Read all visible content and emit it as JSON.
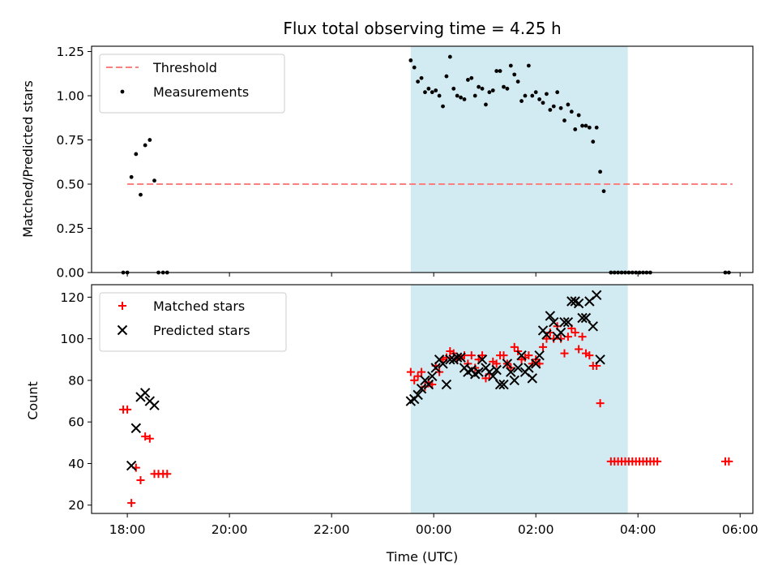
{
  "chart_data": [
    {
      "type": "scatter",
      "title": "Flux total observing time = 4.25 h",
      "ylabel": "Matched/Predicted stars",
      "xlim": [
        -6.7,
        6.25
      ],
      "ylim": [
        0,
        1.28
      ],
      "yticks": [
        0,
        0.25,
        0.5,
        0.75,
        1.0,
        1.25
      ],
      "ytick_labels": [
        "0.00",
        "0.25",
        "0.50",
        "0.75",
        "1.00",
        "1.25"
      ],
      "legend_position": "top-left",
      "shaded_span": {
        "x0": -0.45,
        "x1": 3.8,
        "color": "#add8e6"
      },
      "threshold": {
        "name": "Threshold",
        "y": 0.5,
        "x0": -6.0,
        "x1": 5.85,
        "color": "#ff7f7f",
        "style": "dashed"
      },
      "series": [
        {
          "name": "Measurements",
          "marker": "dot",
          "color": "#000000",
          "points": [
            [
              -6.08,
              0.0
            ],
            [
              -6.0,
              0.0
            ],
            [
              -5.92,
              0.54
            ],
            [
              -5.83,
              0.67
            ],
            [
              -5.74,
              0.44
            ],
            [
              -5.65,
              0.72
            ],
            [
              -5.56,
              0.75
            ],
            [
              -5.47,
              0.52
            ],
            [
              -5.39,
              0.0
            ],
            [
              -5.3,
              0.0
            ],
            [
              -5.22,
              0.0
            ],
            [
              -0.45,
              1.2
            ],
            [
              -0.38,
              1.16
            ],
            [
              -0.31,
              1.08
            ],
            [
              -0.24,
              1.1
            ],
            [
              -0.17,
              1.02
            ],
            [
              -0.1,
              1.04
            ],
            [
              -0.03,
              1.02
            ],
            [
              0.04,
              1.03
            ],
            [
              0.11,
              1.0
            ],
            [
              0.18,
              0.94
            ],
            [
              0.25,
              1.11
            ],
            [
              0.32,
              1.22
            ],
            [
              0.39,
              1.04
            ],
            [
              0.46,
              1.0
            ],
            [
              0.53,
              0.99
            ],
            [
              0.6,
              0.98
            ],
            [
              0.67,
              1.09
            ],
            [
              0.74,
              1.1
            ],
            [
              0.81,
              1.0
            ],
            [
              0.88,
              1.05
            ],
            [
              0.95,
              1.04
            ],
            [
              1.02,
              0.95
            ],
            [
              1.09,
              1.02
            ],
            [
              1.16,
              1.03
            ],
            [
              1.23,
              1.14
            ],
            [
              1.3,
              1.14
            ],
            [
              1.37,
              1.05
            ],
            [
              1.44,
              1.04
            ],
            [
              1.51,
              1.17
            ],
            [
              1.58,
              1.12
            ],
            [
              1.65,
              1.08
            ],
            [
              1.72,
              0.97
            ],
            [
              1.79,
              1.0
            ],
            [
              1.86,
              1.17
            ],
            [
              1.93,
              1.0
            ],
            [
              2.0,
              1.02
            ],
            [
              2.07,
              0.98
            ],
            [
              2.14,
              0.96
            ],
            [
              2.21,
              1.01
            ],
            [
              2.28,
              0.92
            ],
            [
              2.35,
              0.94
            ],
            [
              2.42,
              1.02
            ],
            [
              2.49,
              0.93
            ],
            [
              2.56,
              0.86
            ],
            [
              2.63,
              0.95
            ],
            [
              2.7,
              0.91
            ],
            [
              2.77,
              0.81
            ],
            [
              2.84,
              0.89
            ],
            [
              2.91,
              0.83
            ],
            [
              2.98,
              0.83
            ],
            [
              3.05,
              0.82
            ],
            [
              3.12,
              0.74
            ],
            [
              3.19,
              0.82
            ],
            [
              3.26,
              0.57
            ],
            [
              3.33,
              0.46
            ],
            [
              3.47,
              0.0
            ],
            [
              3.54,
              0.0
            ],
            [
              3.61,
              0.0
            ],
            [
              3.68,
              0.0
            ],
            [
              3.75,
              0.0
            ],
            [
              3.82,
              0.0
            ],
            [
              3.89,
              0.0
            ],
            [
              3.96,
              0.0
            ],
            [
              4.03,
              0.0
            ],
            [
              4.1,
              0.0
            ],
            [
              4.17,
              0.0
            ],
            [
              4.24,
              0.0
            ],
            [
              5.71,
              0.0
            ],
            [
              5.78,
              0.0
            ]
          ]
        }
      ]
    },
    {
      "type": "scatter",
      "xlabel": "Time (UTC)",
      "ylabel": "Count",
      "xlim": [
        -6.7,
        6.25
      ],
      "ylim": [
        16,
        126
      ],
      "xticks": [
        -6,
        -4,
        -2,
        0,
        2,
        4,
        6
      ],
      "xtick_labels": [
        "18:00",
        "20:00",
        "22:00",
        "00:00",
        "02:00",
        "04:00",
        "06:00"
      ],
      "yticks": [
        20,
        40,
        60,
        80,
        100,
        120
      ],
      "ytick_labels": [
        "20",
        "40",
        "60",
        "80",
        "100",
        "120"
      ],
      "legend_position": "top-left",
      "shaded_span": {
        "x0": -0.45,
        "x1": 3.8,
        "color": "#add8e6"
      },
      "series": [
        {
          "name": "Matched stars",
          "marker": "plus",
          "color": "#ff0000",
          "points": [
            [
              -6.08,
              66
            ],
            [
              -6.0,
              66
            ],
            [
              -5.92,
              21
            ],
            [
              -5.83,
              38
            ],
            [
              -5.74,
              32
            ],
            [
              -5.65,
              53
            ],
            [
              -5.56,
              52
            ],
            [
              -5.47,
              35
            ],
            [
              -5.39,
              35
            ],
            [
              -5.3,
              35
            ],
            [
              -5.22,
              35
            ],
            [
              -0.45,
              84
            ],
            [
              -0.38,
              80
            ],
            [
              -0.31,
              82
            ],
            [
              -0.24,
              84
            ],
            [
              -0.17,
              77
            ],
            [
              -0.1,
              79
            ],
            [
              -0.03,
              78
            ],
            [
              0.04,
              87
            ],
            [
              0.11,
              84
            ],
            [
              0.18,
              90
            ],
            [
              0.25,
              91
            ],
            [
              0.32,
              94
            ],
            [
              0.39,
              93
            ],
            [
              0.46,
              90
            ],
            [
              0.53,
              91
            ],
            [
              0.6,
              92
            ],
            [
              0.67,
              88
            ],
            [
              0.74,
              92
            ],
            [
              0.81,
              86
            ],
            [
              0.88,
              90
            ],
            [
              0.95,
              92
            ],
            [
              1.02,
              81
            ],
            [
              1.09,
              83
            ],
            [
              1.16,
              89
            ],
            [
              1.23,
              88
            ],
            [
              1.3,
              92
            ],
            [
              1.37,
              92
            ],
            [
              1.44,
              88
            ],
            [
              1.51,
              86
            ],
            [
              1.58,
              96
            ],
            [
              1.65,
              94
            ],
            [
              1.72,
              90
            ],
            [
              1.79,
              91
            ],
            [
              1.86,
              92
            ],
            [
              1.93,
              88
            ],
            [
              2.0,
              90
            ],
            [
              2.07,
              88
            ],
            [
              2.14,
              96
            ],
            [
              2.21,
              100
            ],
            [
              2.28,
              103
            ],
            [
              2.35,
              100
            ],
            [
              2.42,
              106
            ],
            [
              2.49,
              100
            ],
            [
              2.56,
              93
            ],
            [
              2.63,
              101
            ],
            [
              2.7,
              105
            ],
            [
              2.77,
              103
            ],
            [
              2.84,
              95
            ],
            [
              2.91,
              101
            ],
            [
              2.98,
              93
            ],
            [
              3.05,
              92
            ],
            [
              3.12,
              87
            ],
            [
              3.19,
              87
            ],
            [
              3.26,
              69
            ],
            [
              3.47,
              41
            ],
            [
              3.54,
              41
            ],
            [
              3.61,
              41
            ],
            [
              3.68,
              41
            ],
            [
              3.75,
              41
            ],
            [
              3.82,
              41
            ],
            [
              3.89,
              41
            ],
            [
              3.96,
              41
            ],
            [
              4.03,
              41
            ],
            [
              4.1,
              41
            ],
            [
              4.17,
              41
            ],
            [
              4.24,
              41
            ],
            [
              4.31,
              41
            ],
            [
              4.38,
              41
            ],
            [
              5.71,
              41
            ],
            [
              5.78,
              41
            ]
          ]
        },
        {
          "name": "Predicted stars",
          "marker": "x",
          "color": "#000000",
          "points": [
            [
              -5.92,
              39
            ],
            [
              -5.83,
              57
            ],
            [
              -5.74,
              72
            ],
            [
              -5.65,
              74
            ],
            [
              -5.56,
              70
            ],
            [
              -5.47,
              68
            ],
            [
              -0.45,
              70
            ],
            [
              -0.38,
              71
            ],
            [
              -0.31,
              73
            ],
            [
              -0.24,
              76
            ],
            [
              -0.17,
              80
            ],
            [
              -0.1,
              78
            ],
            [
              -0.03,
              82
            ],
            [
              0.04,
              86
            ],
            [
              0.11,
              90
            ],
            [
              0.18,
              88
            ],
            [
              0.25,
              78
            ],
            [
              0.32,
              90
            ],
            [
              0.39,
              90
            ],
            [
              0.46,
              91
            ],
            [
              0.53,
              91
            ],
            [
              0.6,
              86
            ],
            [
              0.67,
              84
            ],
            [
              0.74,
              85
            ],
            [
              0.81,
              83
            ],
            [
              0.88,
              84
            ],
            [
              0.95,
              90
            ],
            [
              1.02,
              86
            ],
            [
              1.09,
              84
            ],
            [
              1.16,
              82
            ],
            [
              1.23,
              85
            ],
            [
              1.3,
              78
            ],
            [
              1.37,
              78
            ],
            [
              1.44,
              88
            ],
            [
              1.51,
              84
            ],
            [
              1.58,
              80
            ],
            [
              1.65,
              86
            ],
            [
              1.72,
              92
            ],
            [
              1.79,
              84
            ],
            [
              1.86,
              86
            ],
            [
              1.93,
              81
            ],
            [
              2.0,
              88
            ],
            [
              2.07,
              92
            ],
            [
              2.14,
              104
            ],
            [
              2.21,
              102
            ],
            [
              2.28,
              111
            ],
            [
              2.35,
              108
            ],
            [
              2.42,
              101
            ],
            [
              2.49,
              103
            ],
            [
              2.56,
              108
            ],
            [
              2.63,
              108
            ],
            [
              2.7,
              118
            ],
            [
              2.77,
              118
            ],
            [
              2.84,
              117
            ],
            [
              2.91,
              110
            ],
            [
              2.98,
              110
            ],
            [
              3.05,
              118
            ],
            [
              3.12,
              106
            ],
            [
              3.19,
              121
            ],
            [
              3.26,
              90
            ]
          ]
        }
      ]
    }
  ]
}
